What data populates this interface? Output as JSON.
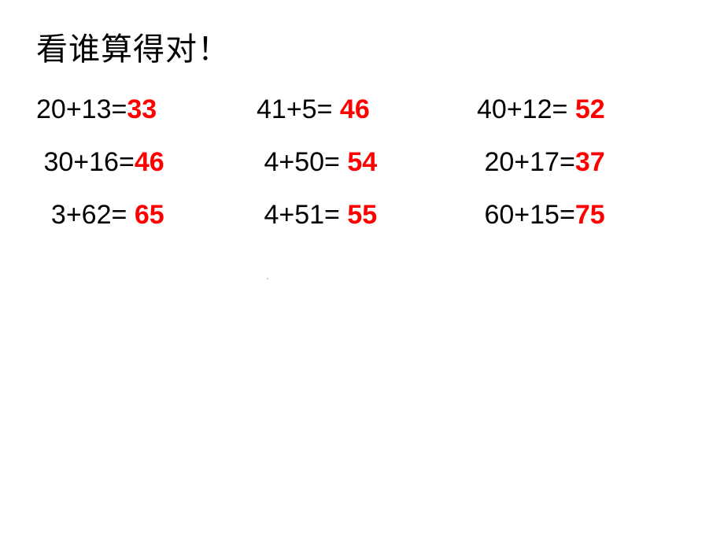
{
  "title": "看谁算得对！",
  "title_fontsize": 40,
  "text_color": "#000000",
  "answer_color": "#ff0000",
  "background_color": "#ffffff",
  "cell_fontsize": 34,
  "rows": [
    [
      {
        "expr": "20+13=",
        "ans": "33",
        "pad_expr": "",
        "pad_ans": ""
      },
      {
        "expr": "41+5=",
        "ans": "46",
        "pad_expr": "",
        "pad_ans": " "
      },
      {
        "expr": "40+12=",
        "ans": "52",
        "pad_expr": "",
        "pad_ans": " "
      }
    ],
    [
      {
        "expr": "30+16=",
        "ans": "46",
        "pad_expr": " ",
        "pad_ans": ""
      },
      {
        "expr": "4+50=",
        "ans": "54",
        "pad_expr": " ",
        "pad_ans": " "
      },
      {
        "expr": "20+17=",
        "ans": "37",
        "pad_expr": " ",
        "pad_ans": ""
      }
    ],
    [
      {
        "expr": "3+62=",
        "ans": "65",
        "pad_expr": "  ",
        "pad_ans": " "
      },
      {
        "expr": "4+51=",
        "ans": "55",
        "pad_expr": " ",
        "pad_ans": " "
      },
      {
        "expr": "60+15=",
        "ans": "75",
        "pad_expr": " ",
        "pad_ans": ""
      }
    ]
  ],
  "footer_dot": "."
}
